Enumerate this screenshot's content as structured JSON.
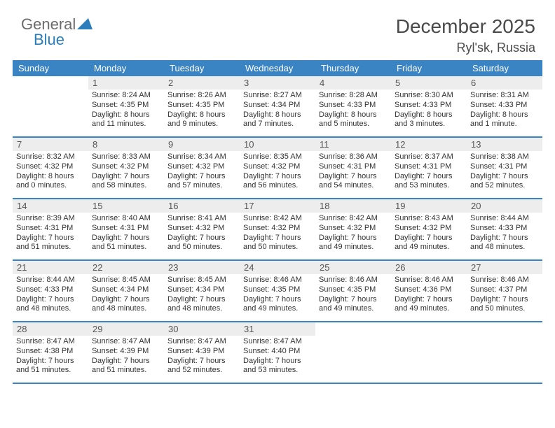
{
  "logo": {
    "t1": "General",
    "t2": "Blue"
  },
  "title": "December 2025",
  "location": "Ryl'sk, Russia",
  "header_bg": "#3b84c4",
  "weekdays": [
    "Sunday",
    "Monday",
    "Tuesday",
    "Wednesday",
    "Thursday",
    "Friday",
    "Saturday"
  ],
  "weeks": [
    [
      null,
      {
        "n": "1",
        "sr": "8:24 AM",
        "ss": "4:35 PM",
        "d1": "Daylight: 8 hours",
        "d2": "and 11 minutes."
      },
      {
        "n": "2",
        "sr": "8:26 AM",
        "ss": "4:35 PM",
        "d1": "Daylight: 8 hours",
        "d2": "and 9 minutes."
      },
      {
        "n": "3",
        "sr": "8:27 AM",
        "ss": "4:34 PM",
        "d1": "Daylight: 8 hours",
        "d2": "and 7 minutes."
      },
      {
        "n": "4",
        "sr": "8:28 AM",
        "ss": "4:33 PM",
        "d1": "Daylight: 8 hours",
        "d2": "and 5 minutes."
      },
      {
        "n": "5",
        "sr": "8:30 AM",
        "ss": "4:33 PM",
        "d1": "Daylight: 8 hours",
        "d2": "and 3 minutes."
      },
      {
        "n": "6",
        "sr": "8:31 AM",
        "ss": "4:33 PM",
        "d1": "Daylight: 8 hours",
        "d2": "and 1 minute."
      }
    ],
    [
      {
        "n": "7",
        "sr": "8:32 AM",
        "ss": "4:32 PM",
        "d1": "Daylight: 8 hours",
        "d2": "and 0 minutes."
      },
      {
        "n": "8",
        "sr": "8:33 AM",
        "ss": "4:32 PM",
        "d1": "Daylight: 7 hours",
        "d2": "and 58 minutes."
      },
      {
        "n": "9",
        "sr": "8:34 AM",
        "ss": "4:32 PM",
        "d1": "Daylight: 7 hours",
        "d2": "and 57 minutes."
      },
      {
        "n": "10",
        "sr": "8:35 AM",
        "ss": "4:32 PM",
        "d1": "Daylight: 7 hours",
        "d2": "and 56 minutes."
      },
      {
        "n": "11",
        "sr": "8:36 AM",
        "ss": "4:31 PM",
        "d1": "Daylight: 7 hours",
        "d2": "and 54 minutes."
      },
      {
        "n": "12",
        "sr": "8:37 AM",
        "ss": "4:31 PM",
        "d1": "Daylight: 7 hours",
        "d2": "and 53 minutes."
      },
      {
        "n": "13",
        "sr": "8:38 AM",
        "ss": "4:31 PM",
        "d1": "Daylight: 7 hours",
        "d2": "and 52 minutes."
      }
    ],
    [
      {
        "n": "14",
        "sr": "8:39 AM",
        "ss": "4:31 PM",
        "d1": "Daylight: 7 hours",
        "d2": "and 51 minutes."
      },
      {
        "n": "15",
        "sr": "8:40 AM",
        "ss": "4:31 PM",
        "d1": "Daylight: 7 hours",
        "d2": "and 51 minutes."
      },
      {
        "n": "16",
        "sr": "8:41 AM",
        "ss": "4:32 PM",
        "d1": "Daylight: 7 hours",
        "d2": "and 50 minutes."
      },
      {
        "n": "17",
        "sr": "8:42 AM",
        "ss": "4:32 PM",
        "d1": "Daylight: 7 hours",
        "d2": "and 50 minutes."
      },
      {
        "n": "18",
        "sr": "8:42 AM",
        "ss": "4:32 PM",
        "d1": "Daylight: 7 hours",
        "d2": "and 49 minutes."
      },
      {
        "n": "19",
        "sr": "8:43 AM",
        "ss": "4:32 PM",
        "d1": "Daylight: 7 hours",
        "d2": "and 49 minutes."
      },
      {
        "n": "20",
        "sr": "8:44 AM",
        "ss": "4:33 PM",
        "d1": "Daylight: 7 hours",
        "d2": "and 48 minutes."
      }
    ],
    [
      {
        "n": "21",
        "sr": "8:44 AM",
        "ss": "4:33 PM",
        "d1": "Daylight: 7 hours",
        "d2": "and 48 minutes."
      },
      {
        "n": "22",
        "sr": "8:45 AM",
        "ss": "4:34 PM",
        "d1": "Daylight: 7 hours",
        "d2": "and 48 minutes."
      },
      {
        "n": "23",
        "sr": "8:45 AM",
        "ss": "4:34 PM",
        "d1": "Daylight: 7 hours",
        "d2": "and 48 minutes."
      },
      {
        "n": "24",
        "sr": "8:46 AM",
        "ss": "4:35 PM",
        "d1": "Daylight: 7 hours",
        "d2": "and 49 minutes."
      },
      {
        "n": "25",
        "sr": "8:46 AM",
        "ss": "4:35 PM",
        "d1": "Daylight: 7 hours",
        "d2": "and 49 minutes."
      },
      {
        "n": "26",
        "sr": "8:46 AM",
        "ss": "4:36 PM",
        "d1": "Daylight: 7 hours",
        "d2": "and 49 minutes."
      },
      {
        "n": "27",
        "sr": "8:46 AM",
        "ss": "4:37 PM",
        "d1": "Daylight: 7 hours",
        "d2": "and 50 minutes."
      }
    ],
    [
      {
        "n": "28",
        "sr": "8:47 AM",
        "ss": "4:38 PM",
        "d1": "Daylight: 7 hours",
        "d2": "and 51 minutes."
      },
      {
        "n": "29",
        "sr": "8:47 AM",
        "ss": "4:39 PM",
        "d1": "Daylight: 7 hours",
        "d2": "and 51 minutes."
      },
      {
        "n": "30",
        "sr": "8:47 AM",
        "ss": "4:39 PM",
        "d1": "Daylight: 7 hours",
        "d2": "and 52 minutes."
      },
      {
        "n": "31",
        "sr": "8:47 AM",
        "ss": "4:40 PM",
        "d1": "Daylight: 7 hours",
        "d2": "and 53 minutes."
      },
      null,
      null,
      null
    ]
  ]
}
